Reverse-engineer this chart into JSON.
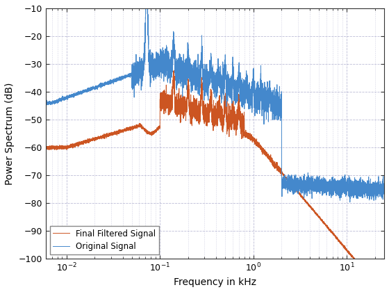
{
  "title": "",
  "xlabel": "Frequency in kHz",
  "ylabel": "Power Spectrum (dB)",
  "xlim": [
    0.006,
    25
  ],
  "ylim": [
    -100,
    -10
  ],
  "yticks": [
    -100,
    -90,
    -80,
    -70,
    -60,
    -50,
    -40,
    -30,
    -20,
    -10
  ],
  "legend": [
    "Original Signal",
    "Final Filtered Signal"
  ],
  "line_colors": [
    "#4488CC",
    "#CC5522"
  ],
  "background_color": "#ffffff",
  "grid_color": "#aaaacc",
  "figsize": [
    5.6,
    4.2
  ],
  "dpi": 100
}
